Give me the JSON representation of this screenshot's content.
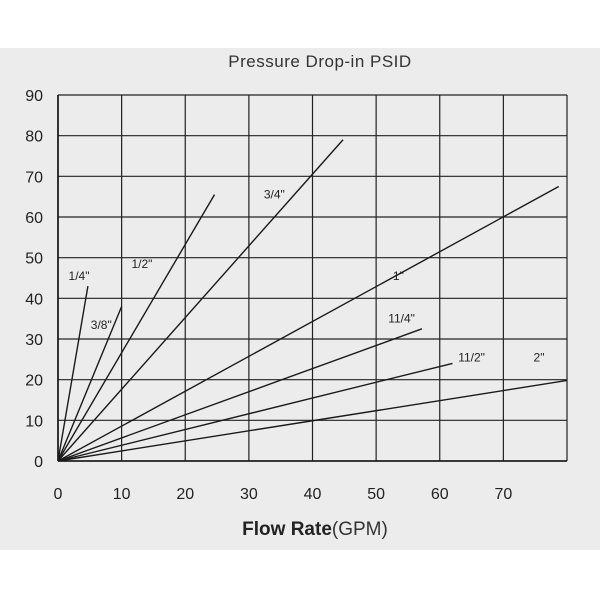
{
  "chart_data": {
    "type": "line",
    "title": "Pressure Drop-in PSID",
    "xlabel_main": "Flow Rate",
    "xlabel_unit": "(GPM)",
    "ylabel": "",
    "xlim": [
      0,
      80
    ],
    "ylim": [
      0,
      90
    ],
    "xticks": [
      0,
      10,
      20,
      30,
      40,
      50,
      60,
      70
    ],
    "yticks": [
      0,
      10,
      20,
      30,
      40,
      50,
      60,
      70,
      80,
      90
    ],
    "grid": true,
    "series": [
      {
        "name": "1/4\"",
        "x": [
          0,
          4.7
        ],
        "y": [
          0,
          43
        ]
      },
      {
        "name": "3/8\"",
        "x": [
          0,
          10
        ],
        "y": [
          0,
          38
        ]
      },
      {
        "name": "1/2\"",
        "x": [
          0,
          24.6
        ],
        "y": [
          0,
          65.5
        ]
      },
      {
        "name": "3/4\"",
        "x": [
          0,
          44.8
        ],
        "y": [
          0,
          79
        ]
      },
      {
        "name": "1\"",
        "x": [
          0,
          78.7
        ],
        "y": [
          0,
          67.5
        ]
      },
      {
        "name": "11/4\"",
        "x": [
          0,
          57.2
        ],
        "y": [
          0,
          32.5
        ]
      },
      {
        "name": "11/2\"",
        "x": [
          0,
          62
        ],
        "y": [
          0,
          24
        ]
      },
      {
        "name": "2\"",
        "x": [
          0,
          80
        ],
        "y": [
          0,
          19.8
        ]
      }
    ],
    "series_labels": [
      {
        "text": "1/4\"",
        "x": 3.3,
        "y": 44.5
      },
      {
        "text": "3/8\"",
        "x": 6.8,
        "y": 32.5
      },
      {
        "text": "1/2\"",
        "x": 13.2,
        "y": 47.5
      },
      {
        "text": "3/4\"",
        "x": 34,
        "y": 64.5
      },
      {
        "text": "1\"",
        "x": 53.5,
        "y": 44.5
      },
      {
        "text": "11/4\"",
        "x": 54,
        "y": 34
      },
      {
        "text": "11/2\"",
        "x": 65,
        "y": 24.5
      },
      {
        "text": "2\"",
        "x": 75.6,
        "y": 24.5
      }
    ]
  }
}
